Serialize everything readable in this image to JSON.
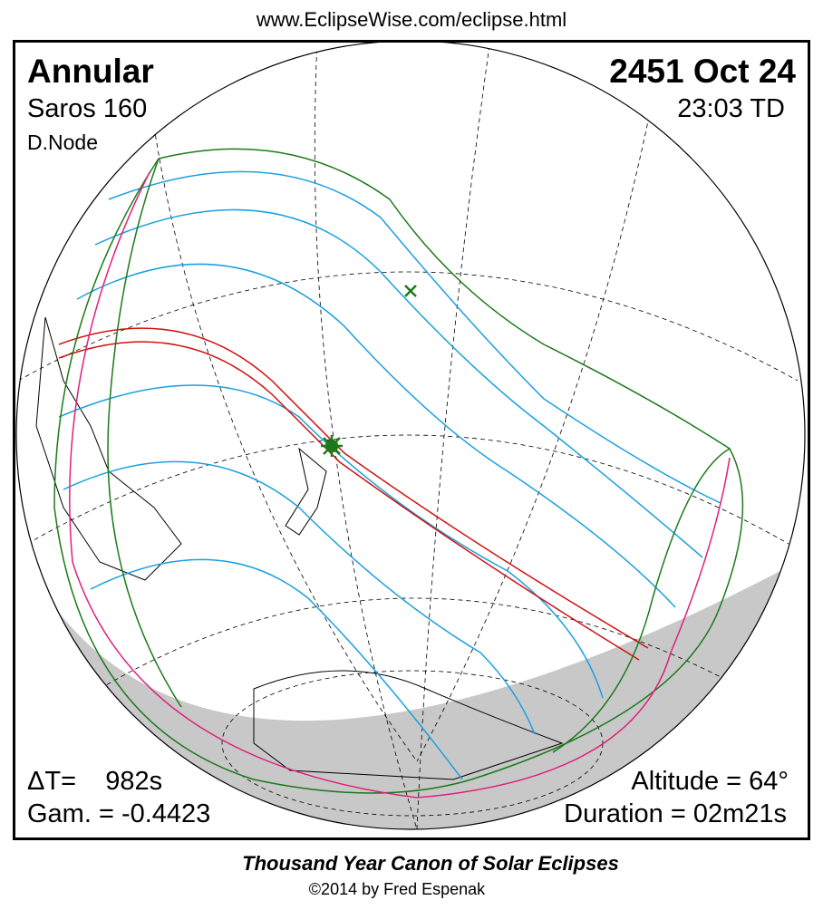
{
  "header": {
    "url": "www.EclipseWise.com/eclipse.html"
  },
  "eclipse": {
    "type": "Annular",
    "date": "2451 Oct 24",
    "saros": "Saros 160",
    "time": "23:03 TD",
    "node": "D.Node",
    "delta_t": "ΔT=    982s",
    "gamma": "Gam. = -0.4423",
    "altitude": "Altitude = 64°",
    "duration": "Duration = 02m21s"
  },
  "footer": {
    "title": "Thousand Year Canon of Solar Eclipses",
    "credit": "©2014 by Fred Espenak"
  }
}
